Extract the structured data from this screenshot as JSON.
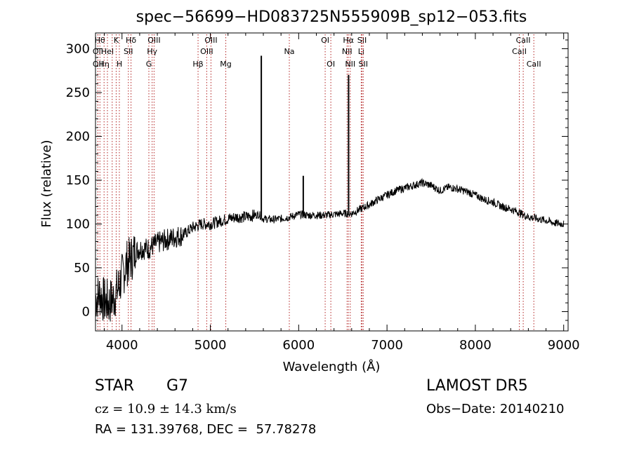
{
  "chart_data": {
    "type": "line",
    "title": "spec−56699−HD083725N555909B_sp12−053.fits",
    "xlabel": "Wavelength (Å)",
    "ylabel": "Flux (relative)",
    "xlim": [
      3700,
      9050
    ],
    "ylim": [
      -22,
      318
    ],
    "x_ticks": [
      4000,
      5000,
      6000,
      7000,
      8000,
      9000
    ],
    "y_ticks": [
      0,
      50,
      100,
      150,
      200,
      250,
      300
    ],
    "grid": false,
    "line_color": "#000000",
    "marker_color": "#b22222",
    "series": [
      {
        "x": [
          3700,
          3750,
          3800,
          3850,
          3900,
          3950,
          4000,
          4050,
          4100,
          4150,
          4200,
          4300,
          4400,
          4500,
          4600,
          4700,
          4800,
          4900,
          5000,
          5100,
          5200,
          5300,
          5400,
          5500,
          5550,
          5600,
          5700,
          5800,
          5900,
          6000,
          6100,
          6200,
          6300,
          6400,
          6500,
          6600,
          6700,
          6800,
          6900,
          7000,
          7100,
          7200,
          7300,
          7400,
          7500,
          7600,
          7700,
          7800,
          7900,
          8000,
          8100,
          8200,
          8300,
          8400,
          8500,
          8550,
          8600,
          8700,
          8800,
          8900,
          9000
        ],
        "y": [
          15,
          20,
          12,
          10,
          15,
          25,
          40,
          55,
          60,
          68,
          72,
          72,
          78,
          82,
          85,
          88,
          96,
          100,
          100,
          103,
          106,
          108,
          108,
          110,
          111,
          106,
          105,
          106,
          108,
          111,
          110,
          110,
          110,
          111,
          112,
          112,
          117,
          122,
          128,
          133,
          138,
          141,
          144,
          147,
          144,
          138,
          142,
          140,
          137,
          133,
          128,
          125,
          120,
          117,
          113,
          110,
          108,
          106,
          104,
          101,
          100
        ]
      }
    ],
    "spikes": [
      {
        "x": 5577,
        "y": 292
      },
      {
        "x": 6052,
        "y": 155
      },
      {
        "x": 6565,
        "y": 270
      }
    ],
    "line_markers": [
      {
        "x": 3727,
        "label": "OII",
        "row": 2
      },
      {
        "x": 3727,
        "label": "OII",
        "row": 1
      },
      {
        "x": 3750,
        "label": "Hθ",
        "row": 0
      },
      {
        "x": 3797,
        "label": "Hη",
        "row": 2
      },
      {
        "x": 3835,
        "label": "Hel",
        "row": 1
      },
      {
        "x": 3889,
        "label": "",
        "row": 0
      },
      {
        "x": 3934,
        "label": "K",
        "row": 0
      },
      {
        "x": 3970,
        "label": "H",
        "row": 2
      },
      {
        "x": 4072,
        "label": "SII",
        "row": 1
      },
      {
        "x": 4102,
        "label": "Hδ",
        "row": 0
      },
      {
        "x": 4304,
        "label": "G",
        "row": 2
      },
      {
        "x": 4341,
        "label": "Hγ",
        "row": 1
      },
      {
        "x": 4363,
        "label": "OIII",
        "row": 0
      },
      {
        "x": 4861,
        "label": "Hβ",
        "row": 2
      },
      {
        "x": 4959,
        "label": "OIII",
        "row": 1
      },
      {
        "x": 5007,
        "label": "OIII",
        "row": 0
      },
      {
        "x": 5175,
        "label": "Mg",
        "row": 2
      },
      {
        "x": 5894,
        "label": "Na",
        "row": 1
      },
      {
        "x": 6300,
        "label": "OI",
        "row": 0
      },
      {
        "x": 6364,
        "label": "OI",
        "row": 2
      },
      {
        "x": 6548,
        "label": "NII",
        "row": 1
      },
      {
        "x": 6563,
        "label": "Hα",
        "row": 0
      },
      {
        "x": 6584,
        "label": "NII",
        "row": 2
      },
      {
        "x": 6708,
        "label": "Li",
        "row": 1
      },
      {
        "x": 6717,
        "label": "SII",
        "row": 0
      },
      {
        "x": 6731,
        "label": "SII",
        "row": 2
      },
      {
        "x": 8498,
        "label": "CaII",
        "row": 1
      },
      {
        "x": 8542,
        "label": "CaII",
        "row": 0
      },
      {
        "x": 8662,
        "label": "CaII",
        "row": 2
      }
    ]
  },
  "info": {
    "object_class": "STAR",
    "subclass": "G7",
    "survey": "LAMOST DR5",
    "cz": "cz = 10.9 ± 14.3 km/s",
    "obs_date": "Obs−Date: 20140210",
    "coords": "RA = 131.39768, DEC =  57.78278"
  }
}
